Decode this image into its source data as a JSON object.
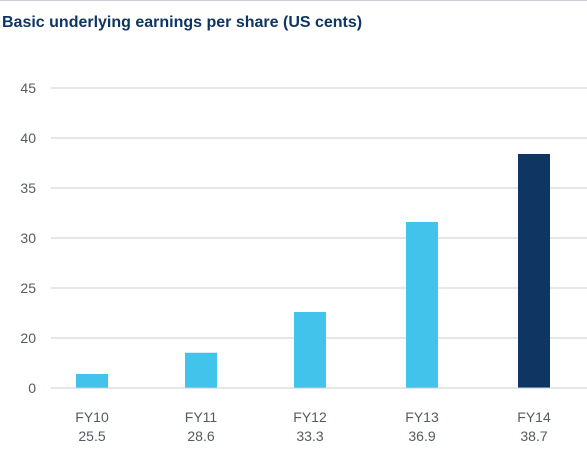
{
  "chart_data": {
    "type": "bar",
    "title": "Basic underlying earnings per share (US cents)",
    "categories": [
      "FY10",
      "FY11",
      "FY12",
      "FY13",
      "FY14"
    ],
    "category_values_printed": [
      "25.5",
      "28.6",
      "33.3",
      "36.9",
      "38.7"
    ],
    "values": [
      25.5,
      28.6,
      33.3,
      36.9,
      38.7
    ],
    "display_values": [
      5.6,
      14.1,
      22.6,
      31.6,
      38.4
    ],
    "xlabel": "",
    "ylabel": "",
    "ylim": [
      0,
      45
    ],
    "yticks": [
      "0",
      "20",
      "25",
      "30",
      "35",
      "40",
      "45"
    ],
    "grid": true,
    "legend": "none",
    "colors": {
      "bar": "#41c3ec",
      "bar_highlight": "#0f3563",
      "title": "#0f3563",
      "grid": "#c8cdd3",
      "text": "#555b63"
    },
    "highlight_index": 4
  }
}
